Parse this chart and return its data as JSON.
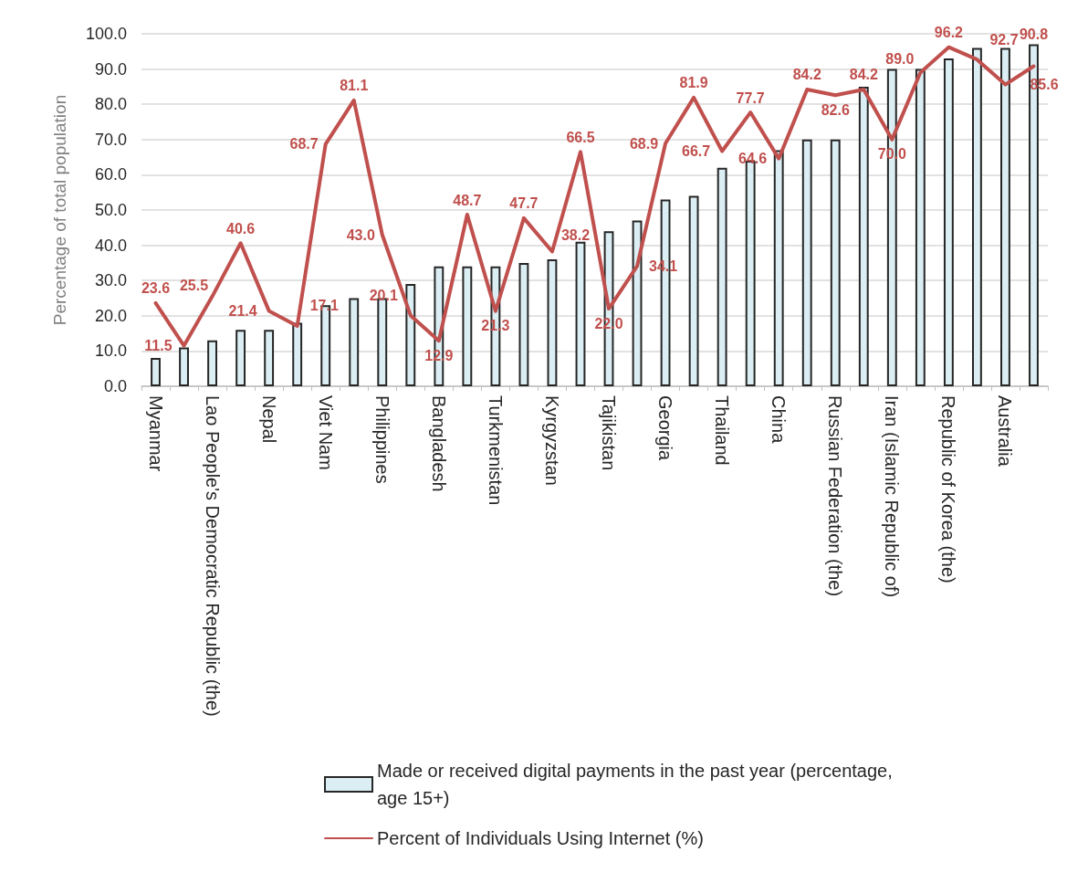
{
  "chart_data": {
    "type": "bar",
    "ylabel": "Percentage of total population",
    "categories": [
      "Myanmar",
      null,
      "Lao People's Democratic Republic (the)",
      null,
      "Nepal",
      null,
      "Viet Nam",
      null,
      "Philippines",
      null,
      "Bangladesh",
      null,
      "Turkmenistan",
      null,
      "Kyrgyzstan",
      null,
      "Tajikistan",
      null,
      "Georgia",
      null,
      "Thailand",
      null,
      "China",
      null,
      "Russian Federation (the)",
      null,
      "Iran (Islamic Republic of)",
      null,
      "Republic of Korea (the)",
      null,
      "Australia",
      null
    ],
    "series": [
      {
        "name": "Made or received digital payments in the past year (percentage, age 15+)",
        "color": "#dbeef4",
        "values": [
          8,
          11,
          13,
          16,
          16,
          18,
          23,
          25,
          25,
          29,
          34,
          34,
          34,
          35,
          36,
          41,
          44,
          47,
          53,
          54,
          62,
          64,
          67,
          70,
          70,
          85,
          90,
          90,
          93,
          96,
          96,
          97
        ]
      },
      {
        "name": "Percent of Individuals Using Internet (%)",
        "type": "line",
        "color": "#c0504d",
        "values": [
          23.6,
          11.5,
          25.5,
          40.6,
          21.4,
          17.1,
          68.7,
          81.1,
          43.0,
          20.1,
          12.9,
          48.7,
          21.3,
          47.7,
          38.2,
          66.5,
          22.0,
          34.1,
          68.9,
          81.9,
          66.7,
          77.7,
          64.6,
          84.2,
          82.6,
          84.2,
          70.0,
          89.0,
          96.2,
          92.7,
          85.6,
          90.8
        ],
        "value_labels": [
          "23.6",
          "11.5",
          "25.5",
          "40.6",
          "21.4",
          "17.1",
          "68.7",
          "81.1",
          "43.0",
          "20.1",
          "12.9",
          "48.7",
          "21.3",
          "47.7",
          "38.2",
          "66.5",
          "22.0",
          "34.1",
          "68.9",
          "81.9",
          "66.7",
          "77.7",
          "64.6",
          "84.2",
          "82.6",
          "84.2",
          "70.0",
          "89.0",
          "96.2",
          "92.7",
          "85.6",
          "90.8"
        ]
      }
    ],
    "ylim": [
      0,
      100
    ],
    "yticks": [
      {
        "value": 0,
        "label": "0.0"
      },
      {
        "value": 10,
        "label": "10.0"
      },
      {
        "value": 20,
        "label": "20.0"
      },
      {
        "value": 30,
        "label": "30.0"
      },
      {
        "value": 40,
        "label": "40.0"
      },
      {
        "value": 50,
        "label": "50.0"
      },
      {
        "value": 60,
        "label": "60.0"
      },
      {
        "value": 70,
        "label": "70.0"
      },
      {
        "value": 80,
        "label": "80.0"
      },
      {
        "value": 90,
        "label": "90.0"
      },
      {
        "value": 100,
        "label": "100.0"
      }
    ],
    "grid": "y",
    "legend": "bottom",
    "marker": "none"
  }
}
